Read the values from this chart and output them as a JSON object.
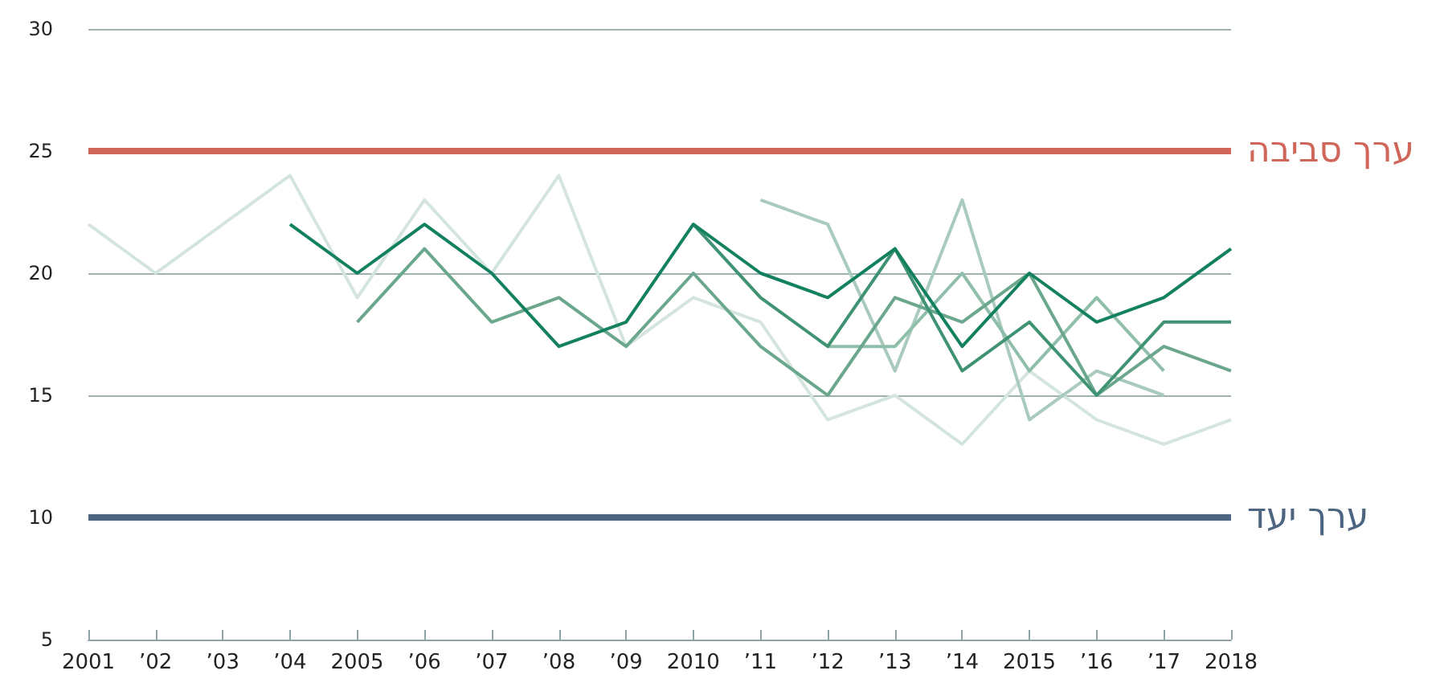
{
  "chart_data": {
    "type": "line",
    "x": [
      2001,
      2002,
      2003,
      2004,
      2005,
      2006,
      2007,
      2008,
      2009,
      2010,
      2011,
      2012,
      2013,
      2014,
      2015,
      2016,
      2017,
      2018
    ],
    "series": [
      {
        "color": "#d3e5de",
        "values": [
          22,
          20,
          22,
          24,
          19,
          23,
          20,
          24,
          17,
          19,
          18,
          14,
          15,
          13,
          16,
          14,
          13,
          14
        ]
      },
      {
        "color": "#a8cbbd",
        "values": [
          null,
          null,
          null,
          null,
          null,
          null,
          null,
          null,
          null,
          null,
          23,
          22,
          16,
          23,
          14,
          16,
          15,
          null
        ]
      },
      {
        "color": "#8fbfaa",
        "values": [
          null,
          null,
          null,
          null,
          null,
          null,
          null,
          null,
          null,
          null,
          null,
          17,
          17,
          20,
          16,
          19,
          16,
          null
        ]
      },
      {
        "color": "#6aa78c",
        "values": [
          null,
          null,
          null,
          null,
          18,
          21,
          18,
          19,
          17,
          20,
          17,
          15,
          19,
          18,
          20,
          15,
          17,
          16
        ]
      },
      {
        "color": "#3f9272",
        "values": [
          null,
          null,
          null,
          null,
          null,
          null,
          null,
          null,
          null,
          22,
          19,
          17,
          21,
          16,
          18,
          15,
          18,
          18
        ]
      },
      {
        "color": "#13805f",
        "values": [
          null,
          null,
          null,
          22,
          20,
          22,
          20,
          17,
          18,
          22,
          20,
          19,
          21,
          17,
          20,
          18,
          19,
          21
        ]
      }
    ],
    "xlim": [
      2001,
      2018
    ],
    "xticks": [
      2001,
      {
        "value": 2002,
        "label": "’02"
      },
      {
        "value": 2003,
        "label": "’03"
      },
      {
        "value": 2004,
        "label": "’04"
      },
      2005,
      {
        "value": 2006,
        "label": "’06"
      },
      {
        "value": 2007,
        "label": "’07"
      },
      {
        "value": 2008,
        "label": "’08"
      },
      {
        "value": 2009,
        "label": "’09"
      },
      2010,
      {
        "value": 2011,
        "label": "’11"
      },
      {
        "value": 2012,
        "label": "’12"
      },
      {
        "value": 2013,
        "label": "’13"
      },
      {
        "value": 2014,
        "label": "’14"
      },
      2015,
      {
        "value": 2016,
        "label": "’16"
      },
      {
        "value": 2017,
        "label": "’17"
      },
      2018
    ],
    "ylim": [
      5,
      30
    ],
    "yticks": [
      5,
      10,
      15,
      20,
      25,
      30
    ],
    "grid": "y",
    "marker": "none",
    "line_style": "solid",
    "ref_lines": [
      {
        "axis": "y",
        "value": 25,
        "label": "ערך סביבה",
        "color": "#d0665a"
      },
      {
        "axis": "y",
        "value": 10,
        "label": "ערך יעד",
        "color": "#4d6580"
      }
    ]
  }
}
